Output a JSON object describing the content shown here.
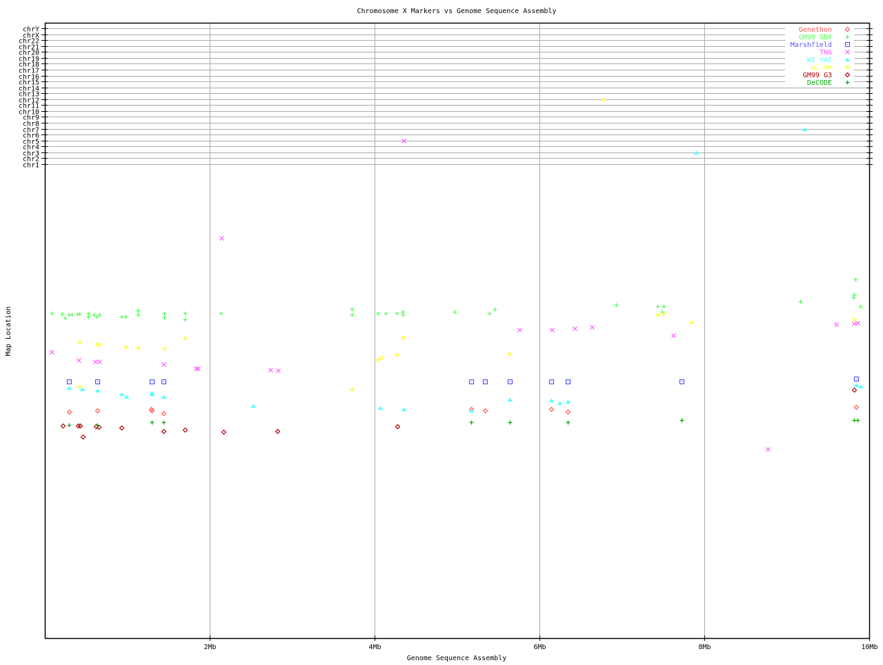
{
  "chart_data": {
    "type": "scatter",
    "title": "Chromosome X Markers vs Genome Sequence Assembly",
    "xlabel": "Genome Sequence Assembly",
    "ylabel": "Map Location",
    "xlim": [
      0,
      10
    ],
    "x_unit": "Mb",
    "x_ticks": [
      {
        "value": 2,
        "label": "2Mb"
      },
      {
        "value": 4,
        "label": "4Mb"
      },
      {
        "value": 6,
        "label": "6Mb"
      },
      {
        "value": 8,
        "label": "8Mb"
      },
      {
        "value": 10,
        "label": "10Mb"
      }
    ],
    "ylim": [
      0,
      100
    ],
    "chromosome_rows": [
      "chrY",
      "chrX",
      "chr22",
      "chr21",
      "chr20",
      "chr19",
      "chr18",
      "chr17",
      "chr16",
      "chr15",
      "chr14",
      "chr13",
      "chr12",
      "chr11",
      "chr10",
      "chr9",
      "chr8",
      "chr7",
      "chr6",
      "chr5",
      "chr4",
      "chr3",
      "chr2",
      "chr1"
    ],
    "grid": true,
    "legend_position": "top-right",
    "series": [
      {
        "name": "Genethon",
        "color": "#ff5555",
        "marker": "diamond",
        "points": [
          [
            0.29,
            48.2
          ],
          [
            0.64,
            48.6
          ],
          [
            1.29,
            48.8
          ],
          [
            1.3,
            48.5
          ],
          [
            1.44,
            48.0
          ],
          [
            5.17,
            48.8
          ],
          [
            5.34,
            48.6
          ],
          [
            6.14,
            48.8
          ],
          [
            6.34,
            48.3
          ],
          [
            9.84,
            49.2
          ]
        ]
      },
      {
        "name": "GM99 GB4",
        "color": "#55ff55",
        "marker": "plus",
        "points": [
          [
            0.08,
            69.3
          ],
          [
            0.21,
            69.1
          ],
          [
            0.24,
            68.2
          ],
          [
            0.29,
            68.9
          ],
          [
            0.33,
            68.9
          ],
          [
            0.39,
            69.1
          ],
          [
            0.42,
            69.1
          ],
          [
            0.53,
            69.2
          ],
          [
            0.53,
            68.6
          ],
          [
            0.59,
            68.9
          ],
          [
            0.63,
            68.5
          ],
          [
            0.66,
            68.9
          ],
          [
            0.93,
            68.6
          ],
          [
            0.98,
            68.6
          ],
          [
            1.13,
            69.8
          ],
          [
            1.13,
            68.9
          ],
          [
            1.45,
            69.2
          ],
          [
            1.45,
            68.4
          ],
          [
            1.7,
            69.2
          ],
          [
            1.7,
            67.9
          ],
          [
            2.13,
            69.3
          ],
          [
            3.72,
            70.1
          ],
          [
            3.72,
            68.9
          ],
          [
            4.04,
            69.3
          ],
          [
            4.13,
            69.3
          ],
          [
            4.27,
            69.2
          ],
          [
            4.34,
            69.6
          ],
          [
            4.34,
            68.9
          ],
          [
            4.97,
            69.5
          ],
          [
            5.39,
            69.3
          ],
          [
            5.46,
            70.2
          ],
          [
            6.93,
            71.1
          ],
          [
            7.43,
            70.7
          ],
          [
            7.51,
            70.7
          ],
          [
            7.49,
            69.6
          ],
          [
            9.16,
            71.8
          ],
          [
            9.83,
            76.4
          ],
          [
            9.82,
            73.3
          ],
          [
            9.81,
            72.6
          ],
          [
            9.89,
            70.7
          ]
        ]
      },
      {
        "name": "Marshfield",
        "color": "#5555ff",
        "marker": "square",
        "points": [
          [
            0.29,
            54.7
          ],
          [
            0.64,
            54.7
          ],
          [
            1.3,
            54.7
          ],
          [
            1.44,
            54.7
          ],
          [
            5.17,
            54.7
          ],
          [
            5.34,
            54.7
          ],
          [
            5.64,
            54.7
          ],
          [
            6.14,
            54.7
          ],
          [
            6.34,
            54.7
          ],
          [
            7.72,
            54.7
          ],
          [
            9.84,
            55.3
          ]
        ]
      },
      {
        "name": "TNG",
        "color": "#ff55ff",
        "marker": "x",
        "points": [
          [
            0.08,
            61.0
          ],
          [
            0.41,
            59.3
          ],
          [
            0.61,
            59.0
          ],
          [
            0.66,
            59.0
          ],
          [
            1.44,
            58.4
          ],
          [
            1.83,
            57.5
          ],
          [
            1.86,
            57.5
          ],
          [
            2.14,
            85.3
          ],
          [
            2.74,
            57.2
          ],
          [
            2.83,
            57.1
          ],
          [
            5.76,
            65.7
          ],
          [
            6.15,
            65.7
          ],
          [
            6.43,
            66.0
          ],
          [
            6.64,
            66.3
          ],
          [
            7.62,
            64.5
          ],
          [
            8.77,
            40.3
          ],
          [
            9.6,
            66.9
          ],
          [
            9.82,
            67.0
          ],
          [
            9.86,
            67.2
          ]
        ],
        "off_chromosome": [
          {
            "x": 4.35,
            "chrom": "chr5"
          }
        ]
      },
      {
        "name": "WI YAC",
        "color": "#55ffff",
        "marker": "triangle",
        "points": [
          [
            0.29,
            53.4
          ],
          [
            0.45,
            53.1
          ],
          [
            0.64,
            52.8
          ],
          [
            0.93,
            52.0
          ],
          [
            0.99,
            51.5
          ],
          [
            1.3,
            52.4
          ],
          [
            1.3,
            52.1
          ],
          [
            1.44,
            51.4
          ],
          [
            2.53,
            49.6
          ],
          [
            4.07,
            49.1
          ],
          [
            4.35,
            48.8
          ],
          [
            5.17,
            48.6
          ],
          [
            5.64,
            50.9
          ],
          [
            6.14,
            50.8
          ],
          [
            6.24,
            50.2
          ],
          [
            6.34,
            50.5
          ],
          [
            9.84,
            53.9
          ],
          [
            9.89,
            53.7
          ]
        ],
        "off_chromosome": [
          {
            "x": 7.9,
            "chrom": "chr3"
          },
          {
            "x": 9.21,
            "chrom": "chr7"
          }
        ]
      },
      {
        "name": "WI RH",
        "color": "#ffff55",
        "marker": "star",
        "points": [
          [
            0.42,
            63.1
          ],
          [
            0.42,
            53.7
          ],
          [
            0.63,
            62.6
          ],
          [
            0.66,
            62.6
          ],
          [
            0.98,
            62.0
          ],
          [
            1.13,
            61.9
          ],
          [
            1.45,
            61.8
          ],
          [
            1.7,
            63.9
          ],
          [
            3.72,
            53.1
          ],
          [
            4.04,
            59.4
          ],
          [
            4.08,
            59.9
          ],
          [
            4.27,
            60.4
          ],
          [
            4.34,
            64.1
          ],
          [
            5.63,
            60.6
          ],
          [
            7.43,
            68.9
          ],
          [
            7.51,
            69.1
          ],
          [
            7.84,
            67.4
          ],
          [
            9.82,
            67.9
          ]
        ],
        "off_chromosome": [
          {
            "x": 6.78,
            "chrom": "chr12"
          }
        ]
      },
      {
        "name": "GM99 G3",
        "color": "#aa0000",
        "marker": "diamond",
        "points": [
          [
            0.22,
            45.3
          ],
          [
            0.4,
            45.3
          ],
          [
            0.43,
            45.3
          ],
          [
            0.62,
            45.1
          ],
          [
            0.65,
            45.0
          ],
          [
            0.46,
            42.9
          ],
          [
            0.93,
            44.8
          ],
          [
            1.44,
            44.1
          ],
          [
            1.7,
            44.4
          ],
          [
            2.17,
            43.9
          ],
          [
            2.82,
            44.1
          ],
          [
            4.28,
            45.1
          ],
          [
            9.82,
            53.0
          ]
        ]
      },
      {
        "name": "DeCODE",
        "color": "#00aa00",
        "marker": "plus",
        "points": [
          [
            0.29,
            45.5
          ],
          [
            0.64,
            45.4
          ],
          [
            1.3,
            46.0
          ],
          [
            1.44,
            46.0
          ],
          [
            5.17,
            46.1
          ],
          [
            5.64,
            46.1
          ],
          [
            6.34,
            46.1
          ],
          [
            7.72,
            46.4
          ],
          [
            9.82,
            46.4
          ],
          [
            9.86,
            46.4
          ]
        ]
      }
    ]
  }
}
